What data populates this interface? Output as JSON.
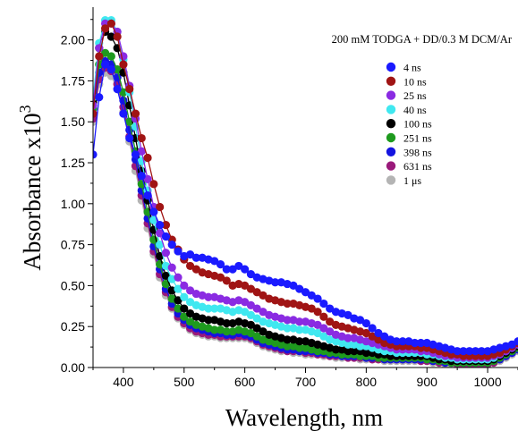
{
  "chart_data": {
    "type": "line",
    "title": "200 mM TODGA + DD/0.3 M DCM/Ar",
    "xlabel": "Wavelength, nm",
    "ylabel_main": "Absorbance x10",
    "ylabel_sup": "3",
    "xlim": [
      350,
      1050
    ],
    "ylim": [
      0,
      2.2
    ],
    "xticks": [
      "400",
      "500",
      "600",
      "700",
      "800",
      "900",
      "1000"
    ],
    "yticks": [
      "0.00",
      "0.25",
      "0.50",
      "0.75",
      "1.00",
      "1.25",
      "1.50",
      "1.75",
      "2.00"
    ],
    "grid": false,
    "legend_position": "top-right",
    "x": [
      350,
      360,
      370,
      380,
      390,
      400,
      410,
      420,
      430,
      440,
      450,
      460,
      470,
      480,
      490,
      500,
      510,
      520,
      530,
      540,
      550,
      560,
      570,
      580,
      590,
      600,
      610,
      620,
      630,
      640,
      650,
      660,
      670,
      680,
      690,
      700,
      710,
      720,
      730,
      740,
      750,
      760,
      770,
      780,
      790,
      800,
      810,
      820,
      830,
      840,
      850,
      860,
      870,
      880,
      890,
      900,
      910,
      920,
      930,
      940,
      950,
      960,
      970,
      980,
      990,
      1000,
      1010,
      1020,
      1030,
      1040,
      1050
    ],
    "series": [
      {
        "name": "4 ns",
        "color": "#1a1aff",
        "values": [
          1.3,
          1.65,
          1.85,
          1.82,
          1.7,
          1.55,
          1.4,
          1.3,
          1.17,
          1.05,
          0.95,
          0.87,
          0.8,
          0.75,
          0.71,
          0.68,
          0.69,
          0.67,
          0.67,
          0.66,
          0.65,
          0.63,
          0.6,
          0.6,
          0.62,
          0.6,
          0.57,
          0.55,
          0.54,
          0.53,
          0.52,
          0.52,
          0.51,
          0.5,
          0.48,
          0.46,
          0.44,
          0.42,
          0.39,
          0.36,
          0.34,
          0.33,
          0.32,
          0.3,
          0.29,
          0.27,
          0.24,
          0.21,
          0.19,
          0.17,
          0.16,
          0.16,
          0.16,
          0.15,
          0.15,
          0.15,
          0.14,
          0.13,
          0.12,
          0.11,
          0.1,
          0.1,
          0.1,
          0.1,
          0.1,
          0.1,
          0.11,
          0.12,
          0.13,
          0.14,
          0.16
        ]
      },
      {
        "name": "10 ns",
        "color": "#a01414",
        "values": [
          1.55,
          1.9,
          2.07,
          2.1,
          2.02,
          1.85,
          1.7,
          1.55,
          1.4,
          1.28,
          1.12,
          0.98,
          0.87,
          0.78,
          0.72,
          0.66,
          0.62,
          0.6,
          0.58,
          0.57,
          0.56,
          0.55,
          0.53,
          0.5,
          0.51,
          0.5,
          0.48,
          0.46,
          0.44,
          0.42,
          0.41,
          0.4,
          0.39,
          0.39,
          0.38,
          0.37,
          0.36,
          0.34,
          0.31,
          0.28,
          0.26,
          0.25,
          0.24,
          0.23,
          0.22,
          0.21,
          0.19,
          0.17,
          0.15,
          0.14,
          0.13,
          0.13,
          0.13,
          0.13,
          0.12,
          0.12,
          0.11,
          0.1,
          0.09,
          0.08,
          0.08,
          0.07,
          0.07,
          0.07,
          0.07,
          0.07,
          0.08,
          0.09,
          0.11,
          0.13,
          0.15
        ]
      },
      {
        "name": "25 ns",
        "color": "#8a2be2",
        "values": [
          1.6,
          1.95,
          2.1,
          2.1,
          2.05,
          1.9,
          1.72,
          1.52,
          1.32,
          1.15,
          0.98,
          0.82,
          0.7,
          0.61,
          0.55,
          0.5,
          0.47,
          0.45,
          0.44,
          0.43,
          0.43,
          0.42,
          0.41,
          0.4,
          0.41,
          0.4,
          0.38,
          0.36,
          0.34,
          0.32,
          0.31,
          0.3,
          0.29,
          0.29,
          0.28,
          0.28,
          0.27,
          0.26,
          0.24,
          0.22,
          0.2,
          0.19,
          0.18,
          0.18,
          0.17,
          0.16,
          0.15,
          0.14,
          0.13,
          0.12,
          0.11,
          0.11,
          0.11,
          0.11,
          0.1,
          0.1,
          0.09,
          0.08,
          0.07,
          0.07,
          0.06,
          0.06,
          0.06,
          0.06,
          0.06,
          0.06,
          0.07,
          0.08,
          0.1,
          0.12,
          0.14
        ]
      },
      {
        "name": "40 ns",
        "color": "#40e8f0",
        "values": [
          1.65,
          1.98,
          2.12,
          2.12,
          2.05,
          1.88,
          1.68,
          1.47,
          1.26,
          1.08,
          0.9,
          0.75,
          0.62,
          0.54,
          0.48,
          0.43,
          0.4,
          0.38,
          0.37,
          0.36,
          0.36,
          0.36,
          0.35,
          0.34,
          0.35,
          0.34,
          0.32,
          0.3,
          0.28,
          0.27,
          0.26,
          0.25,
          0.24,
          0.24,
          0.23,
          0.23,
          0.22,
          0.21,
          0.19,
          0.17,
          0.16,
          0.15,
          0.14,
          0.14,
          0.13,
          0.13,
          0.12,
          0.11,
          0.1,
          0.1,
          0.09,
          0.09,
          0.09,
          0.09,
          0.09,
          0.08,
          0.08,
          0.07,
          0.06,
          0.06,
          0.05,
          0.05,
          0.05,
          0.05,
          0.05,
          0.05,
          0.06,
          0.08,
          0.1,
          0.12,
          0.14
        ]
      },
      {
        "name": "100 ns",
        "color": "#000000",
        "values": [
          1.62,
          1.95,
          2.05,
          2.02,
          1.95,
          1.8,
          1.6,
          1.4,
          1.2,
          1.02,
          0.84,
          0.68,
          0.56,
          0.47,
          0.41,
          0.36,
          0.33,
          0.31,
          0.3,
          0.29,
          0.29,
          0.28,
          0.27,
          0.27,
          0.28,
          0.27,
          0.26,
          0.24,
          0.22,
          0.2,
          0.19,
          0.18,
          0.17,
          0.17,
          0.16,
          0.16,
          0.15,
          0.14,
          0.13,
          0.12,
          0.11,
          0.11,
          0.1,
          0.1,
          0.1,
          0.09,
          0.09,
          0.08,
          0.08,
          0.07,
          0.07,
          0.07,
          0.07,
          0.07,
          0.07,
          0.07,
          0.06,
          0.05,
          0.05,
          0.04,
          0.04,
          0.04,
          0.04,
          0.04,
          0.04,
          0.04,
          0.05,
          0.07,
          0.09,
          0.11,
          0.13
        ]
      },
      {
        "name": "251 ns",
        "color": "#1e9a1e",
        "values": [
          1.58,
          1.85,
          1.92,
          1.9,
          1.82,
          1.68,
          1.5,
          1.32,
          1.12,
          0.95,
          0.78,
          0.63,
          0.51,
          0.42,
          0.36,
          0.31,
          0.28,
          0.26,
          0.25,
          0.24,
          0.23,
          0.23,
          0.22,
          0.22,
          0.23,
          0.22,
          0.21,
          0.19,
          0.17,
          0.16,
          0.15,
          0.14,
          0.13,
          0.13,
          0.12,
          0.12,
          0.11,
          0.1,
          0.1,
          0.09,
          0.09,
          0.08,
          0.08,
          0.08,
          0.07,
          0.07,
          0.07,
          0.06,
          0.06,
          0.06,
          0.06,
          0.06,
          0.06,
          0.06,
          0.06,
          0.05,
          0.05,
          0.04,
          0.04,
          0.03,
          0.03,
          0.03,
          0.03,
          0.03,
          0.03,
          0.03,
          0.04,
          0.06,
          0.08,
          0.1,
          0.12
        ]
      },
      {
        "name": "398 ns",
        "color": "#1414e0",
        "values": [
          1.55,
          1.8,
          1.87,
          1.85,
          1.77,
          1.63,
          1.45,
          1.27,
          1.08,
          0.91,
          0.74,
          0.6,
          0.48,
          0.39,
          0.33,
          0.29,
          0.26,
          0.24,
          0.23,
          0.22,
          0.21,
          0.21,
          0.2,
          0.2,
          0.21,
          0.2,
          0.19,
          0.17,
          0.15,
          0.14,
          0.13,
          0.12,
          0.11,
          0.11,
          0.1,
          0.1,
          0.1,
          0.09,
          0.09,
          0.08,
          0.08,
          0.07,
          0.07,
          0.07,
          0.07,
          0.06,
          0.06,
          0.06,
          0.05,
          0.05,
          0.05,
          0.05,
          0.05,
          0.05,
          0.05,
          0.05,
          0.04,
          0.04,
          0.03,
          0.03,
          0.03,
          0.03,
          0.03,
          0.03,
          0.03,
          0.03,
          0.04,
          0.05,
          0.07,
          0.09,
          0.11
        ]
      },
      {
        "name": "631 ns",
        "color": "#9a1a7a",
        "values": [
          1.52,
          1.76,
          1.83,
          1.81,
          1.73,
          1.59,
          1.41,
          1.23,
          1.05,
          0.88,
          0.71,
          0.57,
          0.46,
          0.37,
          0.31,
          0.27,
          0.24,
          0.22,
          0.21,
          0.2,
          0.2,
          0.19,
          0.19,
          0.19,
          0.19,
          0.19,
          0.18,
          0.16,
          0.14,
          0.13,
          0.12,
          0.11,
          0.1,
          0.1,
          0.1,
          0.09,
          0.09,
          0.08,
          0.08,
          0.07,
          0.07,
          0.07,
          0.06,
          0.06,
          0.06,
          0.06,
          0.05,
          0.05,
          0.05,
          0.05,
          0.05,
          0.05,
          0.05,
          0.05,
          0.04,
          0.04,
          0.04,
          0.03,
          0.03,
          0.03,
          0.02,
          0.02,
          0.02,
          0.02,
          0.02,
          0.02,
          0.03,
          0.05,
          0.07,
          0.09,
          0.11
        ]
      },
      {
        "name": "1 μs",
        "color": "#b4b4b4",
        "values": [
          1.5,
          1.73,
          1.8,
          1.78,
          1.7,
          1.56,
          1.38,
          1.2,
          1.02,
          0.85,
          0.69,
          0.55,
          0.44,
          0.36,
          0.3,
          0.26,
          0.23,
          0.21,
          0.2,
          0.19,
          0.19,
          0.18,
          0.18,
          0.18,
          0.18,
          0.18,
          0.17,
          0.15,
          0.13,
          0.12,
          0.11,
          0.1,
          0.1,
          0.09,
          0.09,
          0.08,
          0.08,
          0.08,
          0.07,
          0.07,
          0.06,
          0.06,
          0.06,
          0.06,
          0.05,
          0.05,
          0.05,
          0.05,
          0.04,
          0.04,
          0.04,
          0.04,
          0.04,
          0.04,
          0.04,
          0.04,
          0.03,
          0.03,
          0.02,
          0.02,
          0.02,
          0.02,
          0.02,
          0.02,
          0.02,
          0.02,
          0.03,
          0.04,
          0.06,
          0.08,
          0.1
        ]
      }
    ]
  }
}
